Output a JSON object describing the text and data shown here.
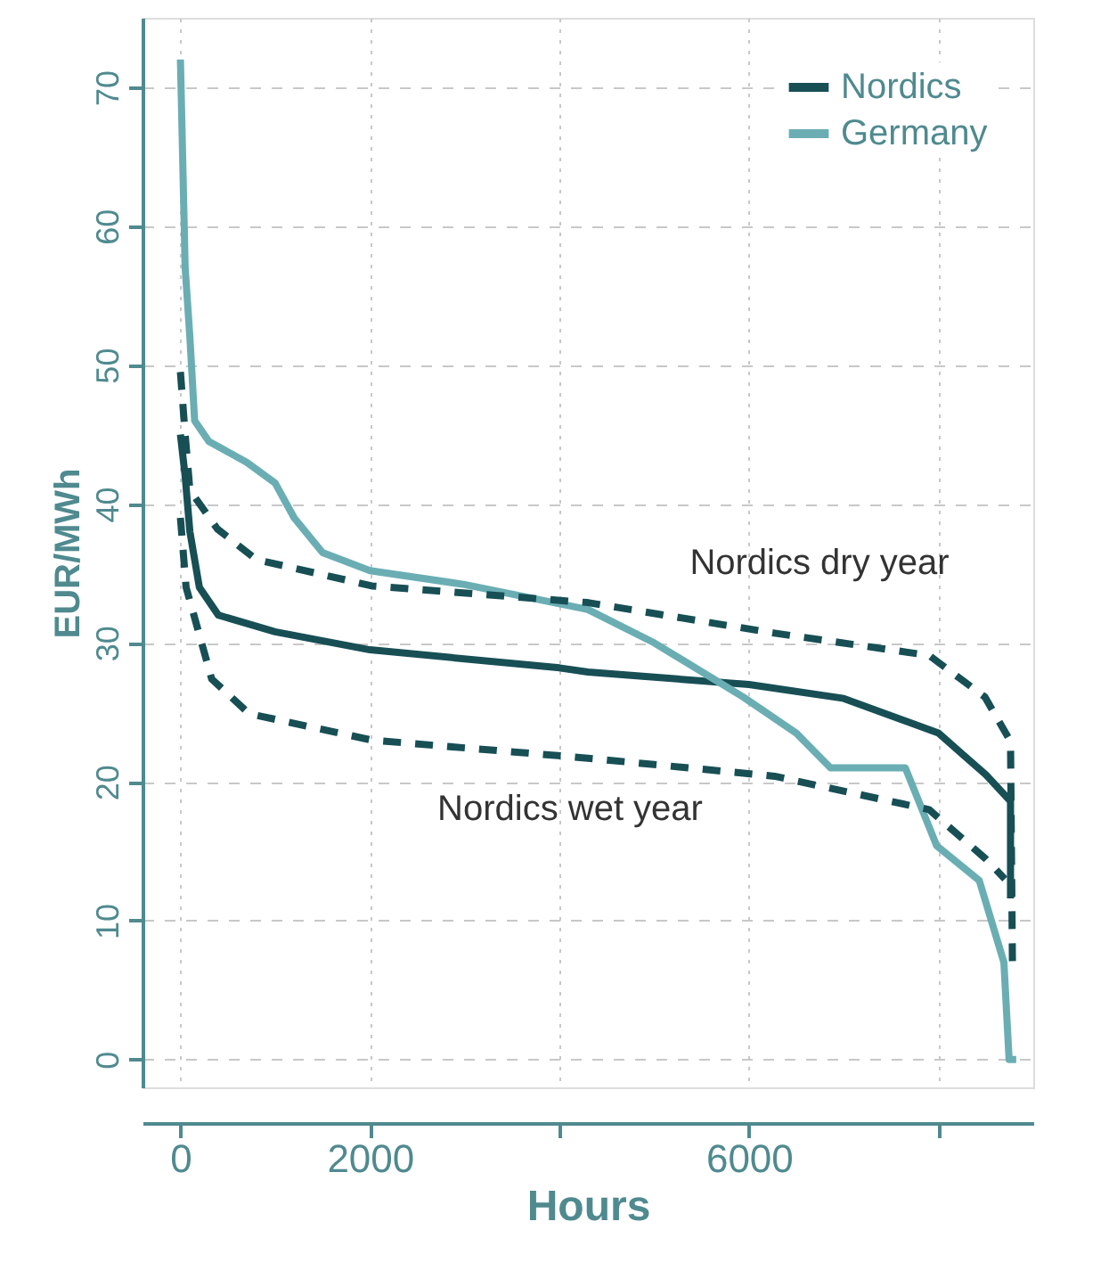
{
  "chart_data": {
    "type": "line",
    "xlabel": "Hours",
    "ylabel": "EUR/MWh",
    "xlim": [
      -400,
      9000
    ],
    "ylim": [
      -2,
      75
    ],
    "xticks": [
      0,
      2000,
      {
        "value": 4000,
        "label": null
      },
      6000,
      {
        "value": 8000,
        "label": null
      }
    ],
    "yticks": [
      0,
      10,
      20,
      30,
      40,
      50,
      60,
      70
    ],
    "grid": true,
    "legend": "top right",
    "line_style": "solid",
    "series": [
      {
        "name": "Nordics",
        "color": "#174f55",
        "x": [
          0,
          50,
          100,
          200,
          400,
          1000,
          2000,
          4000,
          4300,
          6000,
          7000,
          7600,
          8000,
          8250,
          8500,
          8760,
          8760
        ],
        "values": [
          45,
          42,
          38,
          34,
          32,
          30.8,
          29.5,
          28.2,
          27.9,
          27,
          26,
          24.5,
          23.5,
          22,
          20.5,
          18.6,
          11.6
        ]
      },
      {
        "name": "Germany",
        "color": "#6aaeb4",
        "x": [
          0,
          50,
          100,
          150,
          300,
          700,
          1000,
          1200,
          1500,
          2000,
          3000,
          4300,
          5000,
          5940,
          6500,
          6860,
          7650,
          7980,
          8430,
          8690,
          8745,
          8820
        ],
        "values": [
          72,
          57,
          52,
          46,
          44.5,
          43,
          41.5,
          39,
          36.5,
          35.2,
          34.2,
          32.4,
          30,
          26.1,
          23.5,
          21,
          21,
          15.4,
          12.9,
          7,
          0,
          0
        ]
      },
      {
        "color": "#174f55",
        "line_style": "dashed",
        "x": [
          0,
          50,
          100,
          390,
          800,
          2020,
          4300,
          6270,
          7900,
          8490,
          8760,
          8780
        ],
        "values": [
          49.5,
          45,
          41,
          38.2,
          36,
          34.1,
          32.9,
          30.7,
          29.1,
          26.1,
          22.9,
          7
        ]
      },
      {
        "color": "#174f55",
        "line_style": "dashed",
        "x": [
          0,
          60,
          330,
          725,
          2020,
          4300,
          6270,
          7900,
          8490,
          8700
        ],
        "values": [
          39,
          34,
          27.4,
          24.9,
          23,
          21.7,
          20.4,
          18,
          14.5,
          13
        ]
      }
    ],
    "annotations": [
      "Nordics dry year",
      "Nordics wet year"
    ]
  }
}
